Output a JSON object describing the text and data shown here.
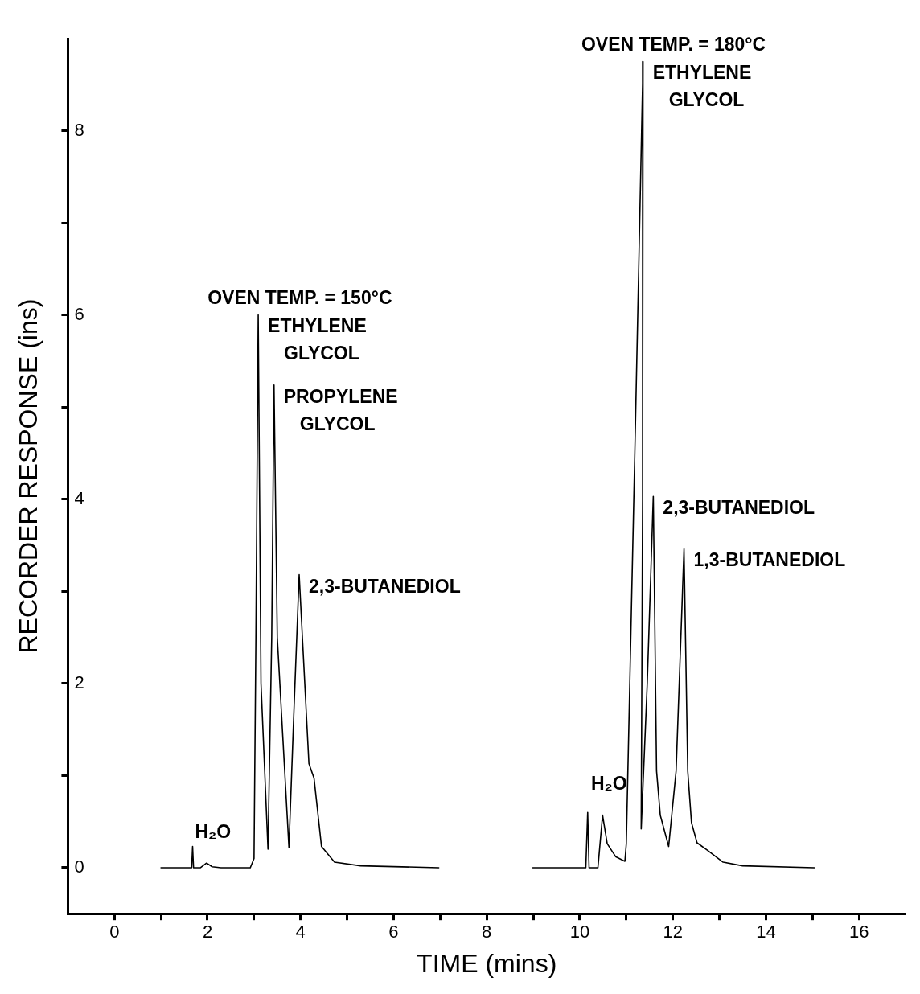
{
  "chart_data": {
    "type": "line",
    "xlabel": "TIME (mins)",
    "ylabel": "RECORDER RESPONSE (ins)",
    "xlim": [
      -1,
      17
    ],
    "xticks": [
      0,
      {
        "value": 1,
        "label": null
      },
      2,
      {
        "value": 3,
        "label": null
      },
      4,
      {
        "value": 5,
        "label": null
      },
      6,
      {
        "value": 7,
        "label": null
      },
      8,
      {
        "value": 9,
        "label": null
      },
      10,
      {
        "value": 11,
        "label": null
      },
      12,
      {
        "value": 13,
        "label": null
      },
      14,
      {
        "value": 15,
        "label": null
      },
      16
    ],
    "ylim": [
      -0.5,
      9
    ],
    "yticks": [
      0,
      {
        "value": 1,
        "label": null
      },
      2,
      {
        "value": 3,
        "label": null
      },
      4,
      {
        "value": 5,
        "label": null
      },
      6,
      {
        "value": 7,
        "label": null
      },
      8
    ],
    "series": [
      {
        "name": "OVEN TEMP. = 150°C",
        "color": "#000000",
        "x": [
          1.0,
          1.66,
          1.68,
          1.7,
          1.85,
          1.98,
          2.1,
          2.29,
          2.92,
          3.0,
          3.04,
          3.09,
          3.15,
          3.3,
          3.38,
          3.43,
          3.5,
          3.75,
          3.85,
          3.97,
          4.18,
          4.29,
          4.45,
          4.73,
          5.29,
          6.97
        ],
        "values": [
          0,
          0,
          0.23,
          0,
          0,
          0.05,
          0.01,
          0,
          0,
          0.1,
          2.48,
          6.0,
          2.0,
          0.2,
          2.5,
          5.24,
          2.5,
          0.22,
          1.6,
          3.18,
          1.13,
          0.97,
          0.23,
          0.06,
          0.02,
          0
        ]
      },
      {
        "name": "OVEN TEMP. = 180°C",
        "color": "#000000",
        "x": [
          8.99,
          10.13,
          10.17,
          10.2,
          10.39,
          10.49,
          10.59,
          10.77,
          10.97,
          11.0,
          11.2,
          11.36,
          11.35,
          11.32,
          11.45,
          11.58,
          11.65,
          11.73,
          11.91,
          12.07,
          12.24,
          12.32,
          12.4,
          12.52,
          12.74,
          13.08,
          13.5,
          15.04
        ],
        "values": [
          0,
          0,
          0.6,
          0,
          0,
          0.57,
          0.26,
          0.12,
          0.07,
          0.26,
          4.9,
          8.75,
          4.0,
          0.42,
          2.0,
          4.03,
          1.05,
          0.57,
          0.23,
          1.05,
          3.46,
          1.05,
          0.49,
          0.27,
          0.19,
          0.06,
          0.02,
          0
        ]
      }
    ],
    "annotations": [
      {
        "text": "H₂O",
        "x": 1.98,
        "y": 0.05
      },
      {
        "text": "ETHYLENE\nGLYCOL",
        "x": 3.09,
        "y": 6.0
      },
      {
        "text": "PROPYLENE\nGLYCOL",
        "x": 3.43,
        "y": 5.24
      },
      {
        "text": "2,3-BUTANEDIOL",
        "x": 3.97,
        "y": 3.18
      },
      {
        "text": "H₂O",
        "x": 10.49,
        "y": 0.57
      },
      {
        "text": "ETHYLENE\nGLYCOL",
        "x": 11.36,
        "y": 8.75
      },
      {
        "text": "2,3-BUTANEDIOL",
        "x": 11.58,
        "y": 4.03
      },
      {
        "text": "1,3-BUTANEDIOL",
        "x": 12.24,
        "y": 3.46
      }
    ]
  }
}
